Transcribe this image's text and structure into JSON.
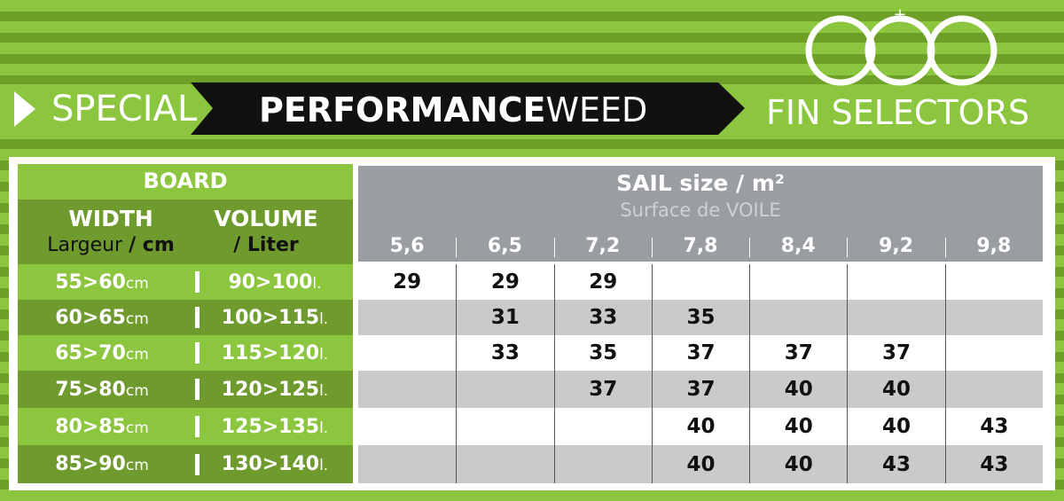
{
  "header": {
    "prefix": "SPECIAL",
    "title_bold": "PERFORMANCE",
    "title_rest": "WEED",
    "brand": "FIN SELECTORS"
  },
  "board_header": {
    "title": "BOARD",
    "width_label": "WIDTH",
    "width_sub": "Largeur",
    "width_unit": "/ cm",
    "volume_label": "VOLUME",
    "volume_unit": "/ Liter"
  },
  "sail_header": {
    "title": "SAIL size / m²",
    "subtitle": "Surface de VOILE",
    "sizes": [
      "5,6",
      "6,5",
      "7,2",
      "7,8",
      "8,4",
      "9,2",
      "9,8"
    ]
  },
  "rows": [
    {
      "width": "55>60",
      "width_unit": "cm",
      "volume": "90>100",
      "volume_unit": "l.",
      "cells": [
        29,
        29,
        29,
        null,
        null,
        null,
        null
      ]
    },
    {
      "width": "60>65",
      "width_unit": "cm",
      "volume": "100>115",
      "volume_unit": "l.",
      "cells": [
        null,
        31,
        33,
        35,
        null,
        null,
        null
      ]
    },
    {
      "width": "65>70",
      "width_unit": "cm",
      "volume": "115>120",
      "volume_unit": "l.",
      "cells": [
        null,
        33,
        35,
        37,
        37,
        37,
        null
      ]
    },
    {
      "width": "75>80",
      "width_unit": "cm",
      "volume": "120>125",
      "volume_unit": "l.",
      "cells": [
        null,
        null,
        37,
        37,
        40,
        40,
        null
      ]
    },
    {
      "width": "80>85",
      "width_unit": "cm",
      "volume": "125>135",
      "volume_unit": "l.",
      "cells": [
        null,
        null,
        null,
        40,
        40,
        40,
        43
      ]
    },
    {
      "width": "85>90",
      "width_unit": "cm",
      "volume": "130>140",
      "volume_unit": "l.",
      "cells": [
        null,
        null,
        null,
        40,
        40,
        43,
        43
      ]
    }
  ]
}
